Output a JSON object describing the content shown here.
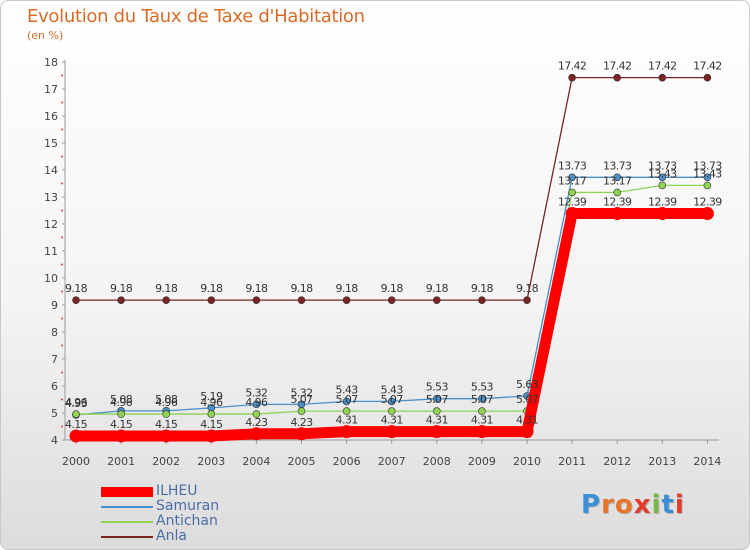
{
  "title": "Evolution du Taux de Taxe d'Habitation",
  "unit": "(en %)",
  "logo": {
    "text": "Proxiti",
    "letters": [
      "P",
      "r",
      "o",
      "x",
      "i",
      "t",
      "i"
    ],
    "colors": [
      "#3a8fd6",
      "#e8742a",
      "#e8742a",
      "#e23b2a",
      "#7ab648",
      "#3a8fd6",
      "#e23b2a"
    ]
  },
  "chart_data": {
    "type": "line",
    "x": [
      "2000",
      "2001",
      "2002",
      "2003",
      "2004",
      "2005",
      "2006",
      "2007",
      "2008",
      "2009",
      "2010",
      "2011",
      "2012",
      "2013",
      "2014"
    ],
    "ylim": [
      4,
      18
    ],
    "yticks": [
      "4",
      "5",
      "6",
      "7",
      "8",
      "9",
      "10",
      "11",
      "12",
      "13",
      "14",
      "15",
      "16",
      "17",
      "18"
    ],
    "grid": false,
    "legend_position": "bottom-left",
    "series": [
      {
        "name": "ILHEU",
        "color": "#ff0000",
        "values": [
          4.15,
          4.15,
          4.15,
          4.15,
          4.23,
          4.23,
          4.31,
          4.31,
          4.31,
          4.31,
          4.31,
          12.39,
          12.39,
          12.39,
          12.39
        ],
        "labels": [
          "4.15",
          "4.15",
          "4.15",
          "4.15",
          "4.23",
          "4.23",
          "4.31",
          "4.31",
          "4.31",
          "4.31",
          "4.31",
          "12.39",
          "12.39",
          "12.39",
          "12.39"
        ]
      },
      {
        "name": "Samuran",
        "color": "#4a90c8",
        "values": [
          4.93,
          5.08,
          5.08,
          5.19,
          5.32,
          5.32,
          5.43,
          5.43,
          5.53,
          5.53,
          5.63,
          13.73,
          13.73,
          13.73,
          13.73
        ],
        "labels": [
          "4.93",
          "5.08",
          "5.08",
          "5.19",
          "5.32",
          "5.32",
          "5.43",
          "5.43",
          "5.53",
          "5.53",
          "5.63",
          "13.73",
          "13.73",
          "13.73",
          "13.73"
        ]
      },
      {
        "name": "Antichan",
        "color": "#8ed352",
        "values": [
          4.96,
          4.96,
          4.96,
          4.96,
          4.96,
          5.07,
          5.07,
          5.07,
          5.07,
          5.07,
          5.07,
          13.17,
          13.17,
          13.43,
          13.43
        ],
        "labels": [
          "4.96",
          "4.96",
          "4.96",
          "4.96",
          "4.96",
          "5.07",
          "5.07",
          "5.07",
          "5.07",
          "5.07",
          "5.07",
          "13.17",
          "13.17",
          "13.43",
          "13.43"
        ]
      },
      {
        "name": "Anla",
        "color": "#7a2424",
        "values": [
          9.18,
          9.18,
          9.18,
          9.18,
          9.18,
          9.18,
          9.18,
          9.18,
          9.18,
          9.18,
          9.18,
          17.42,
          17.42,
          17.42,
          17.42
        ],
        "labels": [
          "9.18",
          "9.18",
          "9.18",
          "9.18",
          "9.18",
          "9.18",
          "9.18",
          "9.18",
          "9.18",
          "9.18",
          "9.18",
          "17.42",
          "17.42",
          "17.42",
          "17.42"
        ]
      }
    ]
  }
}
